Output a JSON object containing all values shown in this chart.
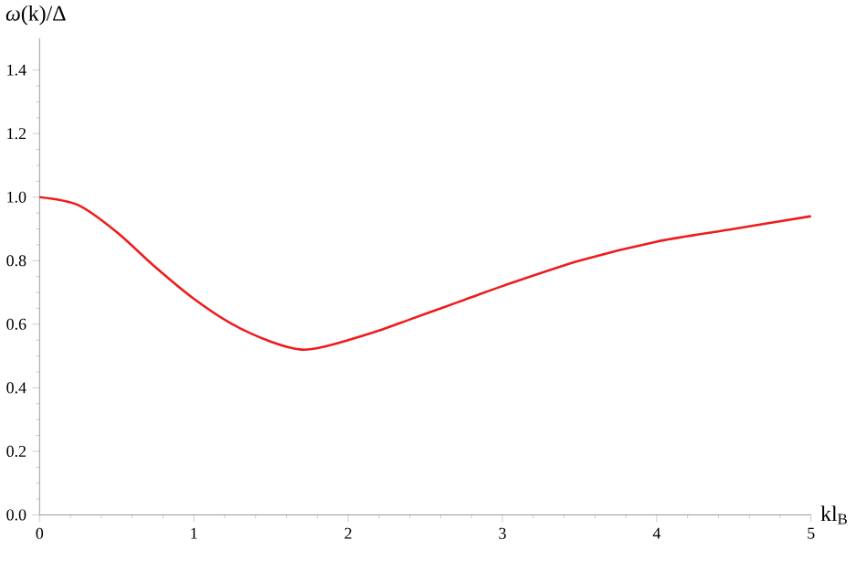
{
  "chart_data": {
    "type": "line",
    "xlabel": "kl$_{B}$",
    "ylabel": "*ω*(k)/Δ",
    "x": [
      0,
      0.25,
      0.5,
      0.75,
      1.0,
      1.25,
      1.5,
      1.7,
      1.85,
      2.0,
      2.2,
      2.4,
      2.6,
      2.8,
      3.0,
      3.5,
      4.0,
      4.5,
      5.0
    ],
    "series": [
      {
        "color": "#ee1c1c",
        "values": [
          1.0,
          0.975,
          0.89,
          0.78,
          0.68,
          0.6,
          0.545,
          0.52,
          0.53,
          0.55,
          0.58,
          0.615,
          0.65,
          0.685,
          0.72,
          0.8,
          0.86,
          0.9,
          0.94
        ]
      }
    ],
    "xlim": [
      0,
      5
    ],
    "ylim": [
      0,
      1.5
    ],
    "xticks": [
      0,
      1,
      2,
      3,
      4,
      5
    ],
    "yticks": [
      {
        "value": 0,
        "label": "0.0"
      },
      {
        "value": 0.2,
        "label": "0.2"
      },
      {
        "value": 0.4,
        "label": "0.4"
      },
      {
        "value": 0.6,
        "label": "0.6"
      },
      {
        "value": 0.8,
        "label": "0.8"
      },
      {
        "value": 1.0,
        "label": "1.0"
      },
      {
        "value": 1.2,
        "label": "1.2"
      },
      {
        "value": 1.4,
        "label": "1.4"
      }
    ],
    "grid": false,
    "marker": "none",
    "line_style": "solid"
  }
}
